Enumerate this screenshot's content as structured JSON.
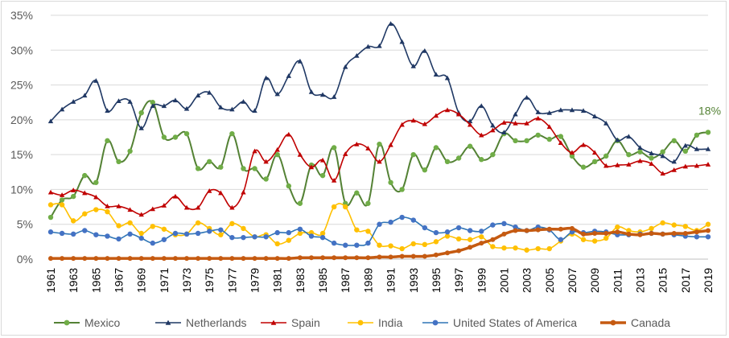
{
  "chart_data": {
    "type": "line",
    "title": "",
    "xlabel": "",
    "ylabel": "",
    "ylim": [
      0,
      35
    ],
    "yticks": [
      0,
      5,
      10,
      15,
      20,
      25,
      30,
      35
    ],
    "ytick_labels": [
      "0%",
      "5%",
      "10%",
      "15%",
      "20%",
      "25%",
      "30%",
      "35%"
    ],
    "x": [
      1961,
      1962,
      1963,
      1964,
      1965,
      1966,
      1967,
      1968,
      1969,
      1970,
      1971,
      1972,
      1973,
      1974,
      1975,
      1976,
      1977,
      1978,
      1979,
      1980,
      1981,
      1982,
      1983,
      1984,
      1985,
      1986,
      1987,
      1988,
      1989,
      1990,
      1991,
      1992,
      1993,
      1994,
      1995,
      1996,
      1997,
      1998,
      1999,
      2000,
      2001,
      2002,
      2003,
      2004,
      2005,
      2006,
      2007,
      2008,
      2009,
      2010,
      2011,
      2012,
      2013,
      2014,
      2015,
      2016,
      2017,
      2018,
      2019
    ],
    "xtick_labels": [
      "1961",
      "1963",
      "1965",
      "1967",
      "1969",
      "1971",
      "1973",
      "1975",
      "1977",
      "1979",
      "1981",
      "1983",
      "1985",
      "1987",
      "1989",
      "1991",
      "1993",
      "1995",
      "1997",
      "1999",
      "2001",
      "2003",
      "2005",
      "2007",
      "2009",
      "2011",
      "2013",
      "2015",
      "2017",
      "2019"
    ],
    "legend_position": "bottom",
    "grid": "horizontal",
    "series": [
      {
        "name": "Mexico",
        "color": "#70ad47",
        "line_color": "#548235",
        "marker": "circle",
        "width": 2,
        "values": [
          6,
          8.5,
          9,
          12,
          11,
          17,
          14,
          15.5,
          21,
          22.5,
          17.5,
          17.5,
          18,
          13,
          14,
          13.2,
          18,
          13,
          13,
          11.5,
          15,
          10.5,
          8,
          13.5,
          12,
          16,
          8,
          9.5,
          8,
          16.5,
          11,
          10,
          15,
          12.8,
          16,
          14,
          14.5,
          16.2,
          14.3,
          15,
          18,
          17,
          17,
          17.8,
          17.2,
          17.6,
          14.8,
          13.2,
          14,
          14.8,
          17,
          15,
          15.4,
          14.5,
          15.4,
          17,
          15.5,
          17.8,
          18.2
        ]
      },
      {
        "name": "Netherlands",
        "color": "#203864",
        "line_color": "#1f3864",
        "marker": "triangle",
        "width": 1.6,
        "values": [
          19.8,
          21.5,
          22.6,
          23.5,
          25.6,
          21.3,
          22.7,
          22.6,
          18.8,
          22,
          22,
          22.8,
          21.6,
          23.5,
          23.9,
          21.8,
          21.5,
          22.6,
          21.3,
          26,
          23.7,
          26.3,
          28.4,
          24,
          23.6,
          23.3,
          27.6,
          29.2,
          30.5,
          30.6,
          33.8,
          31.2,
          27.7,
          29.9,
          26.5,
          26,
          21,
          19.8,
          22,
          19.2,
          18.2,
          20.8,
          23.2,
          21.1,
          21,
          21.4,
          21.4,
          21.3,
          20.5,
          19.5,
          17.1,
          17.6,
          16,
          15.2,
          14.8,
          14,
          16.3,
          15.8,
          15.8
        ]
      },
      {
        "name": "Spain",
        "color": "#c00000",
        "line_color": "#c00000",
        "marker": "triangle",
        "width": 1.6,
        "values": [
          9.6,
          9.2,
          9.9,
          9.5,
          8.9,
          7.6,
          7.6,
          7.1,
          6.4,
          7.2,
          7.7,
          9,
          7.4,
          7.4,
          9.8,
          9.5,
          7.4,
          9.6,
          15.5,
          14,
          15.7,
          17.9,
          15,
          13.2,
          14.2,
          11.3,
          15.1,
          16.5,
          15.9,
          14,
          16.4,
          19.3,
          19.9,
          19.4,
          20.6,
          21.4,
          20.8,
          19.3,
          17.8,
          18.5,
          19.6,
          19.5,
          19.5,
          20.2,
          19,
          16.7,
          15.3,
          16.4,
          15.3,
          13.4,
          13.5,
          13.6,
          14.1,
          13.7,
          12.3,
          12.8,
          13.3,
          13.4,
          13.6
        ]
      },
      {
        "name": "India",
        "color": "#ffc000",
        "line_color": "#ffc000",
        "marker": "circle",
        "width": 1.6,
        "values": [
          7.8,
          7.8,
          5.5,
          6.5,
          7.1,
          6.8,
          4.8,
          5.2,
          3.7,
          4.7,
          4.3,
          3.5,
          3.6,
          5.2,
          4.4,
          3.5,
          5.1,
          4.4,
          3.2,
          3.5,
          2.2,
          2.7,
          3.7,
          3.8,
          3.7,
          7.5,
          7.5,
          4.2,
          4,
          2,
          1.9,
          1.5,
          2.2,
          2.1,
          2.5,
          3.3,
          2.9,
          2.8,
          3.2,
          1.8,
          1.6,
          1.6,
          1.3,
          1.5,
          1.5,
          2.6,
          3.6,
          2.8,
          2.6,
          3,
          4.6,
          4.1,
          3.9,
          4.4,
          5.2,
          4.9,
          4.7,
          4.1,
          5
        ]
      },
      {
        "name": "United States of America",
        "color": "#4472c4",
        "line_color": "#2e75b6",
        "marker": "circle",
        "width": 1.6,
        "values": [
          3.9,
          3.7,
          3.6,
          4.1,
          3.5,
          3.3,
          2.9,
          3.6,
          3,
          2.3,
          2.8,
          3.7,
          3.6,
          3.7,
          4,
          4.2,
          3.1,
          3.1,
          3.2,
          3.2,
          3.8,
          3.8,
          4.3,
          3.3,
          3.1,
          2.3,
          2,
          2,
          2.3,
          5,
          5.3,
          6,
          5.6,
          4.5,
          3.8,
          3.9,
          4.5,
          4.1,
          4,
          4.9,
          5.1,
          4.6,
          4.1,
          4.6,
          4.2,
          2.8,
          3.9,
          3.8,
          4,
          3.9,
          3.5,
          3.5,
          3.6,
          3.7,
          3.6,
          3.5,
          3.3,
          3.2,
          3.2
        ]
      },
      {
        "name": "Canada",
        "color": "#c55a11",
        "line_color": "#c55a11",
        "marker": "circle",
        "width": 3.5,
        "values": [
          0.1,
          0.1,
          0.1,
          0.1,
          0.1,
          0.1,
          0.1,
          0.1,
          0.1,
          0.1,
          0.1,
          0.1,
          0.1,
          0.1,
          0.1,
          0.1,
          0.1,
          0.1,
          0.1,
          0.1,
          0.1,
          0.1,
          0.2,
          0.2,
          0.2,
          0.2,
          0.2,
          0.2,
          0.2,
          0.3,
          0.3,
          0.4,
          0.4,
          0.4,
          0.6,
          0.9,
          1.2,
          1.7,
          2.3,
          2.8,
          3.6,
          4.1,
          4.1,
          4.2,
          4.3,
          4.3,
          4.4,
          3.6,
          3.7,
          3.7,
          3.9,
          3.6,
          3.5,
          3.7,
          3.6,
          3.7,
          3.7,
          3.9,
          4.1
        ]
      }
    ],
    "annotations": [
      {
        "text": "18%",
        "series": "Mexico",
        "x": 2019,
        "y": 18.2,
        "color": "#548235"
      }
    ]
  }
}
